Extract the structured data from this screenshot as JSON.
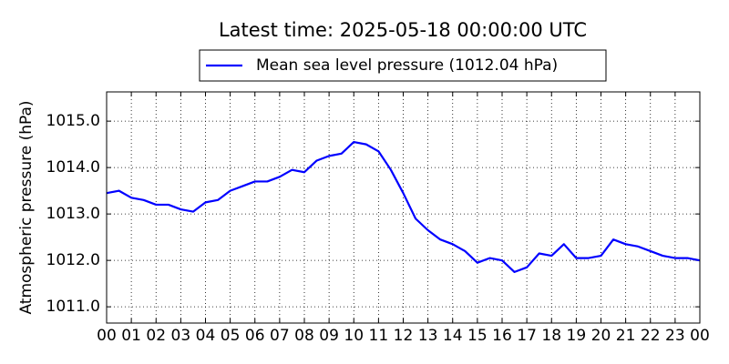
{
  "chart_data": {
    "type": "line",
    "title": "Latest time: 2025-05-18 00:00:00 UTC",
    "ylabel": "Atmospheric pressure (hPa)",
    "x": [
      0,
      0.5,
      1,
      1.5,
      2,
      2.5,
      3,
      3.5,
      4,
      4.5,
      5,
      5.5,
      6,
      6.5,
      7,
      7.5,
      8,
      8.5,
      9,
      9.5,
      10,
      10.5,
      11,
      11.5,
      12,
      12.5,
      13,
      13.5,
      14,
      14.5,
      15,
      15.5,
      16,
      16.5,
      17,
      17.5,
      18,
      18.5,
      19,
      19.5,
      20,
      20.5,
      21,
      21.5,
      22,
      22.5,
      23,
      23.5,
      24
    ],
    "series": [
      {
        "name": "Mean sea level pressure (1012.04 hPa)",
        "color": "#0000ff",
        "values": [
          1013.45,
          1013.5,
          1013.35,
          1013.3,
          1013.2,
          1013.2,
          1013.1,
          1013.05,
          1013.25,
          1013.3,
          1013.5,
          1013.6,
          1013.7,
          1013.7,
          1013.8,
          1013.95,
          1013.9,
          1014.15,
          1014.25,
          1014.3,
          1014.55,
          1014.5,
          1014.35,
          1013.95,
          1013.45,
          1012.9,
          1012.65,
          1012.45,
          1012.35,
          1012.2,
          1011.95,
          1012.05,
          1012.0,
          1011.75,
          1011.85,
          1012.15,
          1012.1,
          1012.35,
          1012.05,
          1012.05,
          1012.1,
          1012.45,
          1012.35,
          1012.3,
          1012.2,
          1012.1,
          1012.05,
          1012.05,
          1012.0
        ]
      }
    ],
    "xlim": [
      0,
      24
    ],
    "xticks": [
      {
        "value": 0,
        "label": "00"
      },
      {
        "value": 1,
        "label": "01"
      },
      {
        "value": 2,
        "label": "02"
      },
      {
        "value": 3,
        "label": "03"
      },
      {
        "value": 4,
        "label": "04"
      },
      {
        "value": 5,
        "label": "05"
      },
      {
        "value": 6,
        "label": "06"
      },
      {
        "value": 7,
        "label": "07"
      },
      {
        "value": 8,
        "label": "08"
      },
      {
        "value": 9,
        "label": "09"
      },
      {
        "value": 10,
        "label": "10"
      },
      {
        "value": 11,
        "label": "11"
      },
      {
        "value": 12,
        "label": "12"
      },
      {
        "value": 13,
        "label": "13"
      },
      {
        "value": 14,
        "label": "14"
      },
      {
        "value": 15,
        "label": "15"
      },
      {
        "value": 16,
        "label": "16"
      },
      {
        "value": 17,
        "label": "17"
      },
      {
        "value": 18,
        "label": "18"
      },
      {
        "value": 19,
        "label": "19"
      },
      {
        "value": 20,
        "label": "20"
      },
      {
        "value": 21,
        "label": "21"
      },
      {
        "value": 22,
        "label": "22"
      },
      {
        "value": 23,
        "label": "23"
      },
      {
        "value": 24,
        "label": "00"
      }
    ],
    "ylim": [
      1010.65,
      1015.63
    ],
    "yticks": [
      {
        "value": 1011,
        "label": "1011.0"
      },
      {
        "value": 1012,
        "label": "1012.0"
      },
      {
        "value": 1013,
        "label": "1013.0"
      },
      {
        "value": 1014,
        "label": "1014.0"
      },
      {
        "value": 1015,
        "label": "1015.0"
      }
    ],
    "grid": true,
    "legend": "top"
  }
}
